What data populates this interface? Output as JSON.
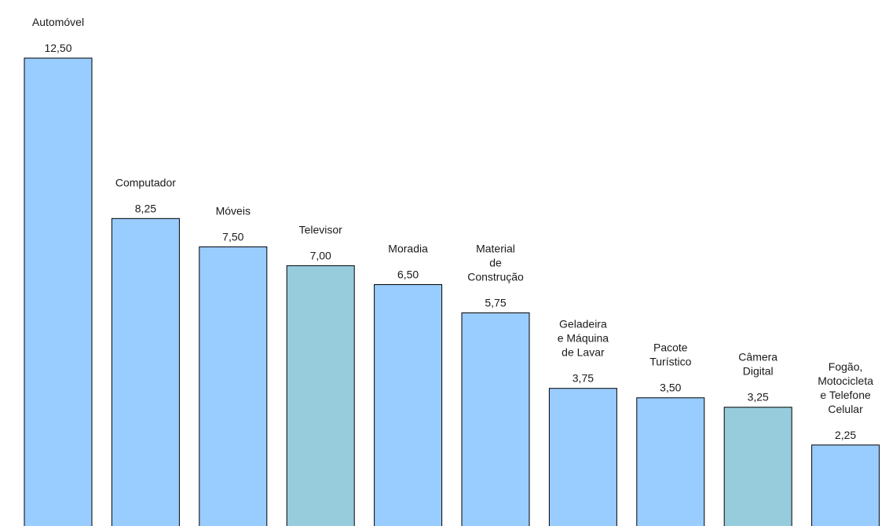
{
  "chart_data": {
    "type": "bar",
    "title": "",
    "xlabel": "",
    "ylabel": "",
    "ylim": [
      0,
      12.5
    ],
    "grid": false,
    "legend": "none",
    "categories": [
      [
        "Automóvel"
      ],
      [
        "Computador"
      ],
      [
        "Móveis"
      ],
      [
        "Televisor"
      ],
      [
        "Moradia"
      ],
      [
        "Material",
        "de",
        "Construção"
      ],
      [
        "Geladeira",
        "e Máquina",
        "de Lavar"
      ],
      [
        "Pacote",
        "Turístico"
      ],
      [
        "Câmera",
        "Digital"
      ],
      [
        "Fogão,",
        "Motocicleta",
        "e Telefone",
        "Celular"
      ]
    ],
    "values": [
      12.5,
      8.25,
      7.5,
      7.0,
      6.5,
      5.75,
      3.75,
      3.5,
      3.25,
      2.25
    ],
    "value_labels": [
      "12,50",
      "8,25",
      "7,50",
      "7,00",
      "6,50",
      "5,75",
      "3,75",
      "3,50",
      "3,25",
      "2,25"
    ],
    "colors": [
      "#99ccff",
      "#99ccff",
      "#99ccff",
      "#96ccdc",
      "#99ccff",
      "#99ccff",
      "#99ccff",
      "#99ccff",
      "#96ccdc",
      "#99ccff"
    ]
  }
}
